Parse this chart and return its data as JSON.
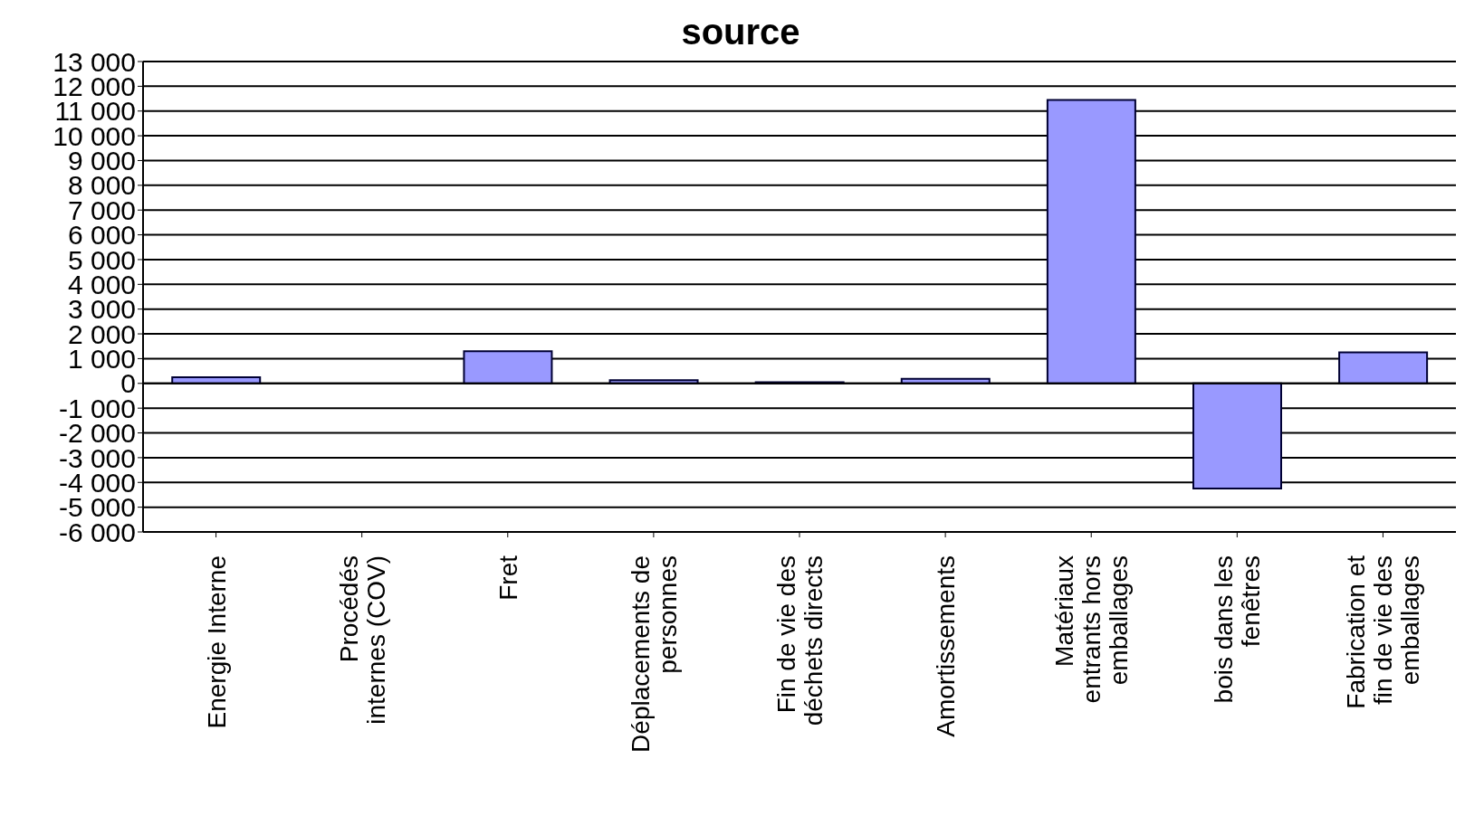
{
  "chart_data": {
    "type": "bar",
    "title": "source",
    "categories": [
      "Energie Interne",
      "Procédés internes (COV)",
      "Fret",
      "Déplacements de personnes",
      "Fin de vie des déchets directs",
      "Amortissements",
      "Matériaux entrants hors emballages",
      "bois dans les fenêtres",
      "Fabrication et fin de vie des emballages"
    ],
    "values": [
      250,
      0,
      1300,
      130,
      50,
      180,
      11450,
      -4250,
      1250
    ],
    "color": "#9999ff",
    "ylim": [
      -6000,
      13000
    ],
    "yticks": [
      {
        "value": -6000,
        "label": "-6 000"
      },
      {
        "value": -5000,
        "label": "-5 000"
      },
      {
        "value": -4000,
        "label": "-4 000"
      },
      {
        "value": -3000,
        "label": "-3 000"
      },
      {
        "value": -2000,
        "label": "-2 000"
      },
      {
        "value": -1000,
        "label": "-1 000"
      },
      0,
      {
        "value": 1000,
        "label": "1 000"
      },
      {
        "value": 2000,
        "label": "2 000"
      },
      {
        "value": 3000,
        "label": "3 000"
      },
      {
        "value": 4000,
        "label": "4 000"
      },
      {
        "value": 5000,
        "label": "5 000"
      },
      {
        "value": 6000,
        "label": "6 000"
      },
      {
        "value": 7000,
        "label": "7 000"
      },
      {
        "value": 8000,
        "label": "8 000"
      },
      {
        "value": 9000,
        "label": "9 000"
      },
      {
        "value": 10000,
        "label": "10 000"
      },
      {
        "value": 11000,
        "label": "11 000"
      },
      {
        "value": 12000,
        "label": "12 000"
      },
      {
        "value": 13000,
        "label": "13 000"
      }
    ],
    "grid": "y"
  }
}
